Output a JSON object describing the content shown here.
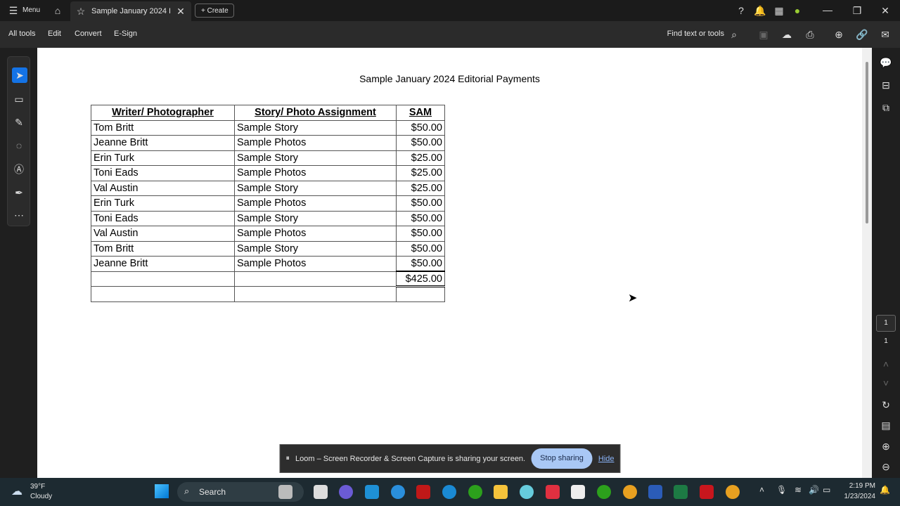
{
  "titlebar": {
    "menu": "Menu",
    "tab_title": "Sample January 2024 Ed...",
    "create": "Create"
  },
  "toolbar": {
    "items": [
      "All tools",
      "Edit",
      "Convert",
      "E-Sign"
    ],
    "find": "Find text or tools"
  },
  "document": {
    "title": "Sample January 2024 Editorial Payments",
    "headers": [
      "Writer/ Photographer",
      "Story/ Photo Assignment",
      "SAM"
    ],
    "rows": [
      [
        "Tom Britt",
        "Sample Story",
        "$50.00"
      ],
      [
        "Jeanne Britt",
        "Sample Photos",
        "$50.00"
      ],
      [
        "Erin Turk",
        "Sample Story",
        "$25.00"
      ],
      [
        "Toni Eads",
        "Sample Photos",
        "$25.00"
      ],
      [
        "Val Austin",
        "Sample Story",
        "$25.00"
      ],
      [
        "Erin Turk",
        "Sample Photos",
        "$50.00"
      ],
      [
        "Toni Eads",
        "Sample Story",
        "$50.00"
      ],
      [
        "Val Austin",
        "Sample Photos",
        "$50.00"
      ],
      [
        "Tom Britt",
        "Sample Story",
        "$50.00"
      ],
      [
        "Jeanne Britt",
        "Sample Photos",
        "$50.00"
      ]
    ],
    "total": "$425.00"
  },
  "pager": {
    "current": "1",
    "total": "1"
  },
  "loom": {
    "message": "Loom – Screen Recorder & Screen Capture is sharing your screen.",
    "stop": "Stop sharing",
    "hide": "Hide"
  },
  "taskbar": {
    "temp": "39°F",
    "weather": "Cloudy",
    "search": "Search",
    "time": "2:19 PM",
    "date": "1/23/2024"
  },
  "colors": {
    "accent": "#1473e6",
    "loom_button": "#a9c8f5"
  }
}
